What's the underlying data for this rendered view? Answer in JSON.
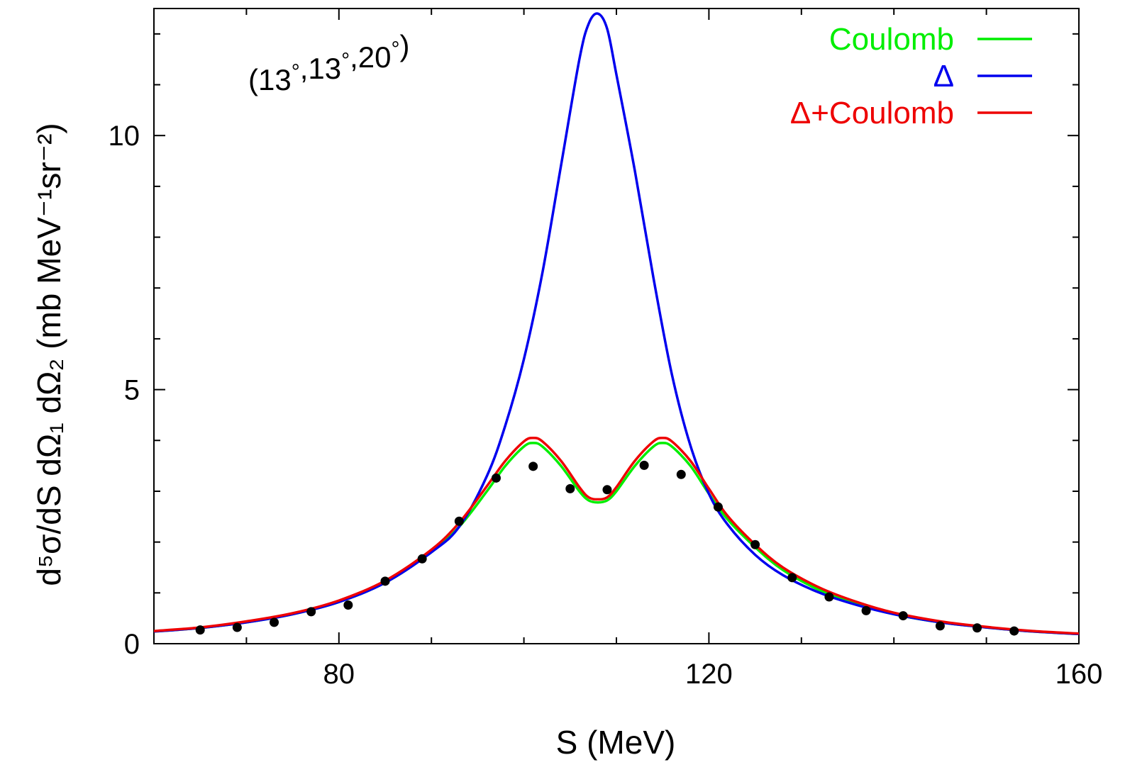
{
  "chart_data": {
    "type": "line",
    "title": "",
    "annotation": "(13°,13°,20°)",
    "xlabel": "S  (MeV)",
    "ylabel": "d⁵σ/dS dΩ₁ dΩ₂  (mb MeV⁻¹sr⁻²)",
    "xlim": [
      60,
      160
    ],
    "ylim": [
      0,
      12.5
    ],
    "x_ticks": [
      80,
      120,
      160
    ],
    "x_tick_labels": [
      "80",
      "120",
      "160"
    ],
    "y_ticks": [
      0,
      5,
      10
    ],
    "y_tick_labels": [
      "0",
      "5",
      "10"
    ],
    "grid": false,
    "legend_position": "top-right",
    "series": [
      {
        "name": "Coulomb",
        "color": "#00ee00",
        "kind": "line",
        "x": [
          60,
          65,
          70,
          75,
          80,
          85,
          90,
          93,
          96,
          98,
          100,
          101,
          102,
          104,
          106,
          107,
          108,
          109,
          110,
          112,
          114,
          115,
          116,
          118,
          120,
          122,
          125,
          128,
          132,
          136,
          140,
          145,
          150,
          155,
          160
        ],
        "y": [
          0.24,
          0.31,
          0.42,
          0.58,
          0.82,
          1.2,
          1.8,
          2.3,
          3.0,
          3.5,
          3.88,
          3.95,
          3.88,
          3.5,
          3.0,
          2.82,
          2.78,
          2.82,
          3.0,
          3.5,
          3.88,
          3.95,
          3.88,
          3.5,
          2.95,
          2.45,
          1.9,
          1.45,
          1.05,
          0.78,
          0.58,
          0.42,
          0.32,
          0.24,
          0.19
        ]
      },
      {
        "name": "Δ",
        "color": "#0000ee",
        "kind": "line",
        "x": [
          60,
          65,
          70,
          75,
          80,
          85,
          90,
          93,
          96,
          98,
          100,
          102,
          104,
          106,
          107,
          108,
          109,
          110,
          112,
          114,
          116,
          118,
          120,
          122,
          125,
          128,
          132,
          136,
          140,
          145,
          150,
          155,
          160
        ],
        "y": [
          0.24,
          0.31,
          0.42,
          0.58,
          0.82,
          1.2,
          1.8,
          2.3,
          3.3,
          4.3,
          5.6,
          7.3,
          9.4,
          11.5,
          12.2,
          12.4,
          12.1,
          11.2,
          9.3,
          7.2,
          5.3,
          3.9,
          2.95,
          2.35,
          1.75,
          1.35,
          1.0,
          0.76,
          0.58,
          0.42,
          0.32,
          0.24,
          0.19
        ]
      },
      {
        "name": "Δ+Coulomb",
        "color": "#ee0000",
        "kind": "line",
        "x": [
          60,
          65,
          70,
          75,
          80,
          85,
          90,
          93,
          96,
          98,
          100,
          101,
          102,
          104,
          106,
          107,
          108,
          109,
          110,
          112,
          114,
          115,
          116,
          118,
          120,
          122,
          125,
          128,
          132,
          136,
          140,
          145,
          150,
          155,
          160
        ],
        "y": [
          0.25,
          0.32,
          0.44,
          0.6,
          0.85,
          1.24,
          1.85,
          2.38,
          3.1,
          3.6,
          3.98,
          4.05,
          3.98,
          3.6,
          3.08,
          2.88,
          2.84,
          2.88,
          3.08,
          3.6,
          3.98,
          4.05,
          3.98,
          3.6,
          3.05,
          2.52,
          1.95,
          1.5,
          1.1,
          0.82,
          0.61,
          0.44,
          0.33,
          0.25,
          0.2
        ]
      },
      {
        "name": "",
        "color": "#000000",
        "kind": "points",
        "x": [
          65,
          69,
          73,
          77,
          81,
          85,
          89,
          93,
          97,
          101,
          105,
          109,
          113,
          117,
          121,
          125,
          129,
          133,
          137,
          141,
          145,
          149,
          153
        ],
        "y": [
          0.27,
          0.32,
          0.42,
          0.63,
          0.76,
          1.23,
          1.67,
          2.41,
          3.26,
          3.49,
          3.05,
          3.03,
          3.51,
          3.33,
          2.69,
          1.95,
          1.3,
          0.92,
          0.65,
          0.55,
          0.35,
          0.31,
          0.25
        ]
      }
    ]
  }
}
